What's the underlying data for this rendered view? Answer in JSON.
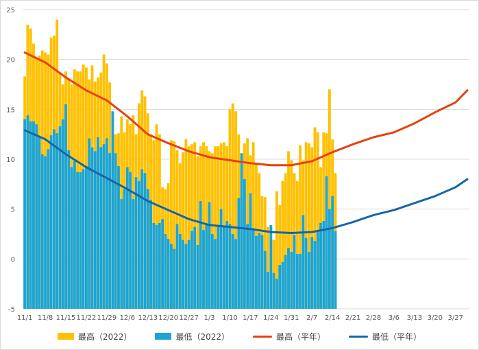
{
  "chart_data": {
    "type": "bar+line",
    "ylim": [
      -5,
      25
    ],
    "yticks": [
      -5,
      0,
      5,
      10,
      15,
      20,
      25
    ],
    "xticks": [
      {
        "day": 0,
        "label": "11/1"
      },
      {
        "day": 7,
        "label": "11/8"
      },
      {
        "day": 14,
        "label": "11/15"
      },
      {
        "day": 21,
        "label": "11/22"
      },
      {
        "day": 28,
        "label": "11/29"
      },
      {
        "day": 35,
        "label": "12/6"
      },
      {
        "day": 42,
        "label": "12/13"
      },
      {
        "day": 49,
        "label": "12/20"
      },
      {
        "day": 56,
        "label": "12/27"
      },
      {
        "day": 63,
        "label": "1/3"
      },
      {
        "day": 70,
        "label": "1/10"
      },
      {
        "day": 77,
        "label": "1/17"
      },
      {
        "day": 84,
        "label": "1/24"
      },
      {
        "day": 91,
        "label": "1/31"
      },
      {
        "day": 98,
        "label": "2/7"
      },
      {
        "day": 105,
        "label": "2/14"
      },
      {
        "day": 112,
        "label": "2/21"
      },
      {
        "day": 119,
        "label": "2/28"
      },
      {
        "day": 126,
        "label": "3/6"
      },
      {
        "day": 133,
        "label": "3/13"
      },
      {
        "day": 140,
        "label": "3/20"
      },
      {
        "day": 147,
        "label": "3/27"
      }
    ],
    "total_days": 152,
    "bars_high": {
      "name": "最高（2022）",
      "color": "#FFC000",
      "values": [
        18.3,
        23.5,
        23.1,
        21.6,
        20.2,
        20.4,
        20.9,
        20.7,
        20.5,
        22.2,
        22.4,
        24.0,
        18.7,
        17.5,
        18.8,
        18.0,
        17.5,
        19.0,
        18.8,
        18.8,
        19.5,
        19.2,
        18.0,
        19.4,
        17.8,
        18.2,
        18.7,
        20.5,
        19.6,
        17.7,
        13.0,
        12.5,
        12.6,
        14.3,
        12.7,
        14.0,
        13.5,
        14.4,
        12.5,
        15.6,
        16.9,
        16.3,
        14.6,
        12.5,
        11.9,
        13.5,
        12.5,
        7.2,
        7.0,
        7.6,
        11.9,
        11.8,
        10.9,
        9.6,
        10.7,
        12.0,
        11.3,
        11.5,
        11.7,
        10.3,
        11.3,
        11.7,
        11.3,
        10.8,
        10.6,
        11.3,
        11.3,
        11.6,
        11.7,
        11.3,
        15.0,
        15.6,
        14.8,
        12.5,
        9.0,
        11.6,
        12.1,
        10.4,
        11.7,
        9.6,
        8.6,
        6.3,
        6.2,
        3.2,
        2.1,
        1.9,
        6.8,
        5.4,
        7.8,
        8.6,
        10.8,
        9.9,
        8.6,
        7.8,
        11.4,
        9.9,
        11.7,
        11.6,
        11.2,
        13.2,
        12.7,
        9.2,
        12.7,
        12.6,
        17.0,
        12.0,
        8.6
      ]
    },
    "bars_low": {
      "name": "最低（2022）",
      "color": "#1BA4D4",
      "values": [
        14.0,
        14.4,
        13.8,
        13.8,
        13.5,
        12.2,
        10.5,
        10.3,
        11.0,
        12.4,
        13.0,
        12.6,
        13.3,
        14.0,
        15.5,
        10.9,
        9.2,
        9.8,
        8.7,
        8.7,
        9.0,
        9.3,
        12.1,
        11.2,
        10.8,
        12.2,
        11.2,
        11.5,
        12.1,
        10.6,
        14.8,
        10.6,
        9.3,
        6.0,
        7.0,
        9.2,
        8.7,
        6.0,
        8.2,
        7.8,
        9.0,
        8.6,
        7.0,
        5.9,
        3.6,
        3.4,
        3.6,
        4.0,
        2.5,
        2.0,
        1.5,
        1.0,
        3.5,
        2.5,
        1.9,
        1.5,
        1.9,
        2.8,
        3.2,
        1.4,
        5.8,
        2.9,
        3.5,
        5.7,
        2.5,
        2.0,
        3.3,
        5.0,
        3.3,
        3.8,
        3.5,
        2.5,
        2.0,
        6.1,
        10.6,
        8.0,
        3.5,
        6.6,
        3.1,
        2.3,
        2.6,
        2.4,
        0.8,
        -1.3,
        3.4,
        -1.4,
        -2.0,
        -0.6,
        -0.3,
        0.4,
        1.1,
        0.7,
        2.4,
        0.5,
        0.5,
        4.4,
        2.1,
        0.7,
        2.2,
        1.8,
        2.7,
        3.6,
        3.8,
        8.3,
        5.0,
        6.3,
        2.8
      ]
    },
    "line_high": {
      "name": "最高（平年）",
      "color": "#E8400C",
      "points": [
        [
          0,
          20.7
        ],
        [
          7,
          19.7
        ],
        [
          14,
          18.2
        ],
        [
          21,
          16.9
        ],
        [
          28,
          15.9
        ],
        [
          35,
          14.3
        ],
        [
          42,
          12.5
        ],
        [
          49,
          11.6
        ],
        [
          56,
          10.8
        ],
        [
          63,
          10.2
        ],
        [
          70,
          9.9
        ],
        [
          77,
          9.6
        ],
        [
          84,
          9.4
        ],
        [
          91,
          9.4
        ],
        [
          98,
          9.8
        ],
        [
          105,
          10.7
        ],
        [
          112,
          11.5
        ],
        [
          119,
          12.2
        ],
        [
          126,
          12.7
        ],
        [
          133,
          13.6
        ],
        [
          140,
          14.7
        ],
        [
          147,
          15.7
        ],
        [
          151,
          16.9
        ]
      ]
    },
    "line_low": {
      "name": "最低（平年）",
      "color": "#1565A8",
      "points": [
        [
          0,
          12.9
        ],
        [
          7,
          12.0
        ],
        [
          14,
          10.5
        ],
        [
          21,
          9.2
        ],
        [
          28,
          8.1
        ],
        [
          35,
          7.0
        ],
        [
          42,
          5.8
        ],
        [
          49,
          4.9
        ],
        [
          56,
          4.0
        ],
        [
          63,
          3.4
        ],
        [
          70,
          3.2
        ],
        [
          77,
          3.0
        ],
        [
          84,
          2.7
        ],
        [
          91,
          2.6
        ],
        [
          98,
          2.7
        ],
        [
          105,
          3.1
        ],
        [
          112,
          3.7
        ],
        [
          119,
          4.4
        ],
        [
          126,
          4.9
        ],
        [
          133,
          5.6
        ],
        [
          140,
          6.3
        ],
        [
          147,
          7.2
        ],
        [
          151,
          8.0
        ]
      ]
    },
    "legend": [
      "最高（2022）",
      "最低（2022）",
      "最高（平年）",
      "最低（平年）"
    ]
  }
}
